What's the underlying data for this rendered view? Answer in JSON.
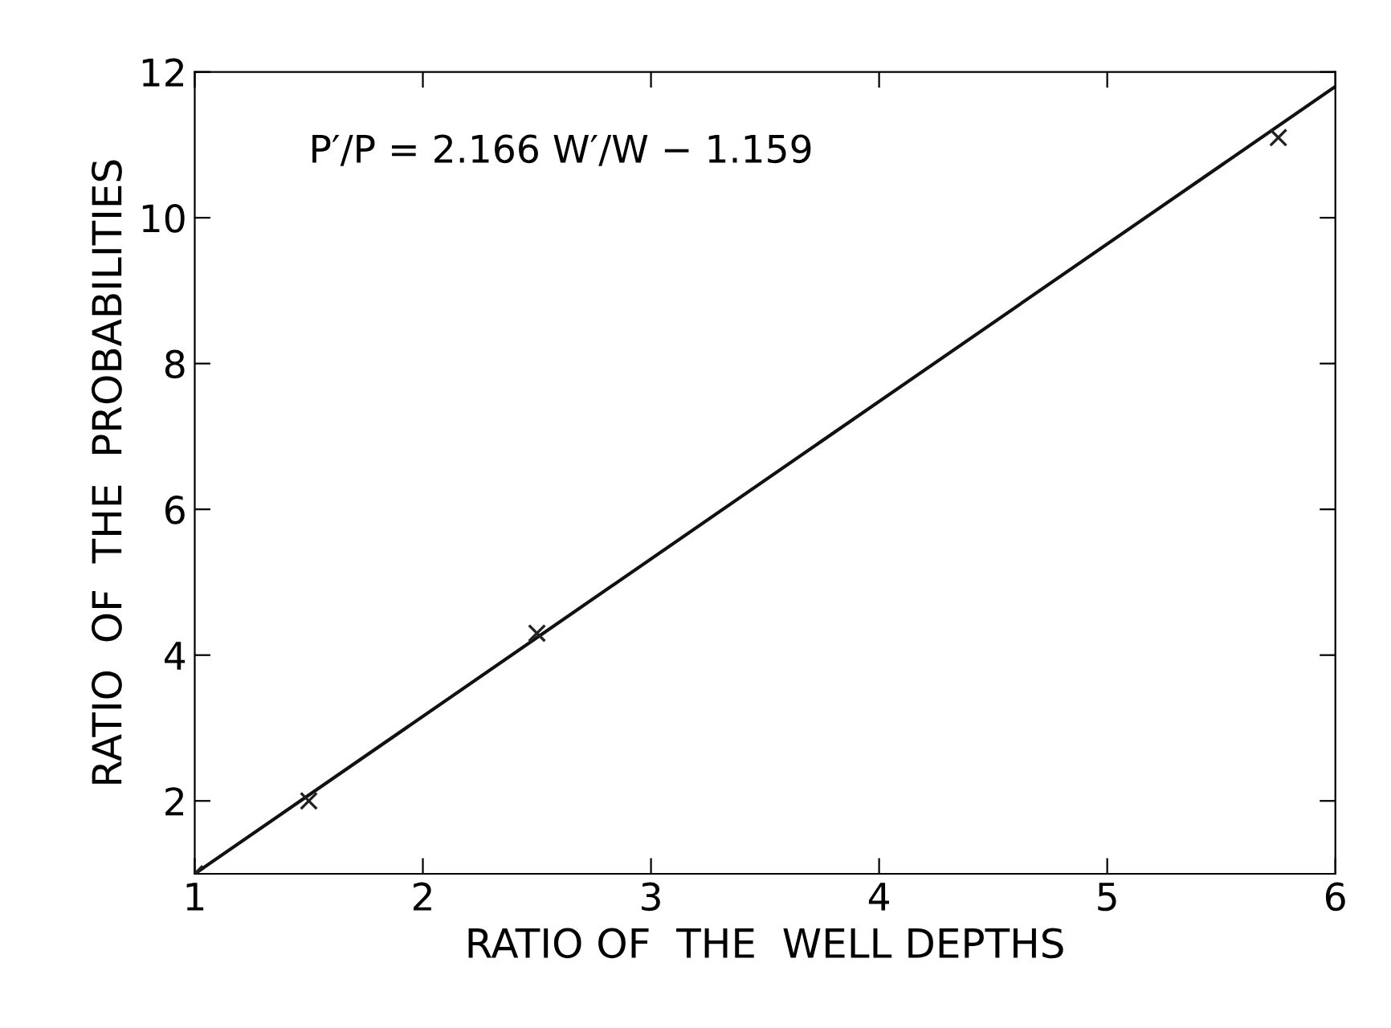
{
  "chart_data": {
    "type": "scatter",
    "xlabel": "RATIO OF  THE  WELL DEPTHS",
    "ylabel": "RATIO  OF  THE  PROBABILITIES",
    "annotations": [
      "P′/P = 2.166 W′/W − 1.159"
    ],
    "series": [
      {
        "color": "#222222",
        "x": [
          1.0,
          1.5,
          2.5,
          5.75
        ],
        "values": [
          1.0,
          2.0,
          4.3,
          11.1
        ],
        "marker": "cross"
      },
      {
        "type": "line",
        "color": "#111111",
        "x": [
          1,
          6
        ],
        "values": [
          1.0,
          11.8
        ],
        "marker": "none",
        "line_style": "solid"
      }
    ],
    "xlim": [
      1,
      6
    ],
    "ylim": [
      1,
      12
    ],
    "xticks": [
      1,
      2,
      3,
      4,
      5,
      6
    ],
    "yticks": [
      2,
      4,
      6,
      8,
      10,
      12
    ],
    "grid": false,
    "legend": false
  }
}
